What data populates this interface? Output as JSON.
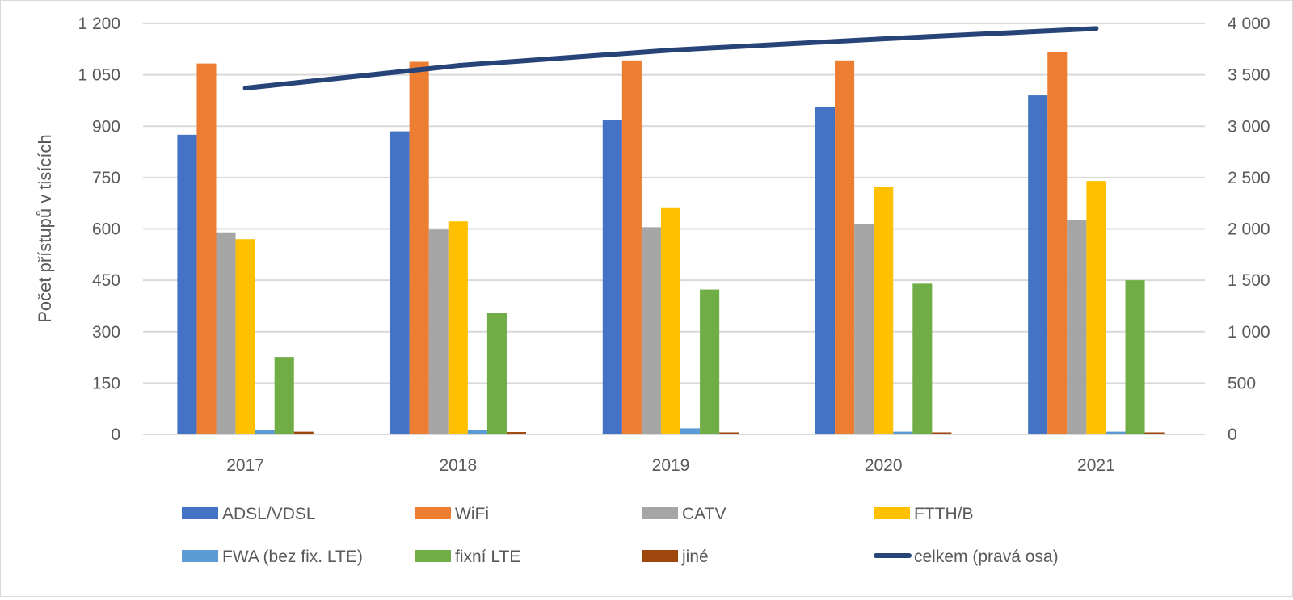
{
  "chart_data": {
    "type": "bar",
    "title": "",
    "xlabel": "",
    "ylabel": "Počet přístupů v tisících",
    "y2label": "",
    "categories": [
      "2017",
      "2018",
      "2019",
      "2020",
      "2021"
    ],
    "ylim": [
      0,
      1200
    ],
    "yticks": [
      0,
      150,
      300,
      450,
      600,
      750,
      900,
      1050,
      1200
    ],
    "ytick_labels": [
      "0",
      "150",
      "300",
      "450",
      "600",
      "750",
      "900",
      "1 050",
      "1 200"
    ],
    "y2lim": [
      0,
      4000
    ],
    "y2ticks": [
      0,
      500,
      1000,
      1500,
      2000,
      2500,
      3000,
      3500,
      4000
    ],
    "y2tick_labels": [
      "0",
      "500",
      "1 000",
      "1 500",
      "2 000",
      "2 500",
      "3 000",
      "3 500",
      "4 000"
    ],
    "grid": true,
    "legend_position": "bottom",
    "series": [
      {
        "name": "ADSL/VDSL",
        "type": "bar",
        "axis": "left",
        "color": "#4472c4",
        "values": [
          875,
          885,
          918,
          955,
          990
        ]
      },
      {
        "name": "WiFi",
        "type": "bar",
        "axis": "left",
        "color": "#ed7d31",
        "values": [
          1083,
          1088,
          1092,
          1092,
          1117
        ]
      },
      {
        "name": "CATV",
        "type": "bar",
        "axis": "left",
        "color": "#a5a5a5",
        "values": [
          590,
          598,
          605,
          613,
          625
        ]
      },
      {
        "name": "FTTH/B",
        "type": "bar",
        "axis": "left",
        "color": "#ffc000",
        "values": [
          570,
          622,
          663,
          722,
          740
        ]
      },
      {
        "name": "FWA (bez fix. LTE)",
        "type": "bar",
        "axis": "left",
        "color": "#5b9bd5",
        "values": [
          12,
          12,
          18,
          8,
          8
        ]
      },
      {
        "name": "fixní LTE",
        "type": "bar",
        "axis": "left",
        "color": "#70ad47",
        "values": [
          226,
          355,
          423,
          440,
          450
        ]
      },
      {
        "name": "jiné",
        "type": "bar",
        "axis": "left",
        "color": "#9e480e",
        "values": [
          8,
          7,
          6,
          6,
          6
        ]
      },
      {
        "name": "celkem (pravá osa)",
        "type": "line",
        "axis": "right",
        "color": "#264478",
        "values": [
          3370,
          3590,
          3740,
          3850,
          3950
        ]
      }
    ]
  }
}
